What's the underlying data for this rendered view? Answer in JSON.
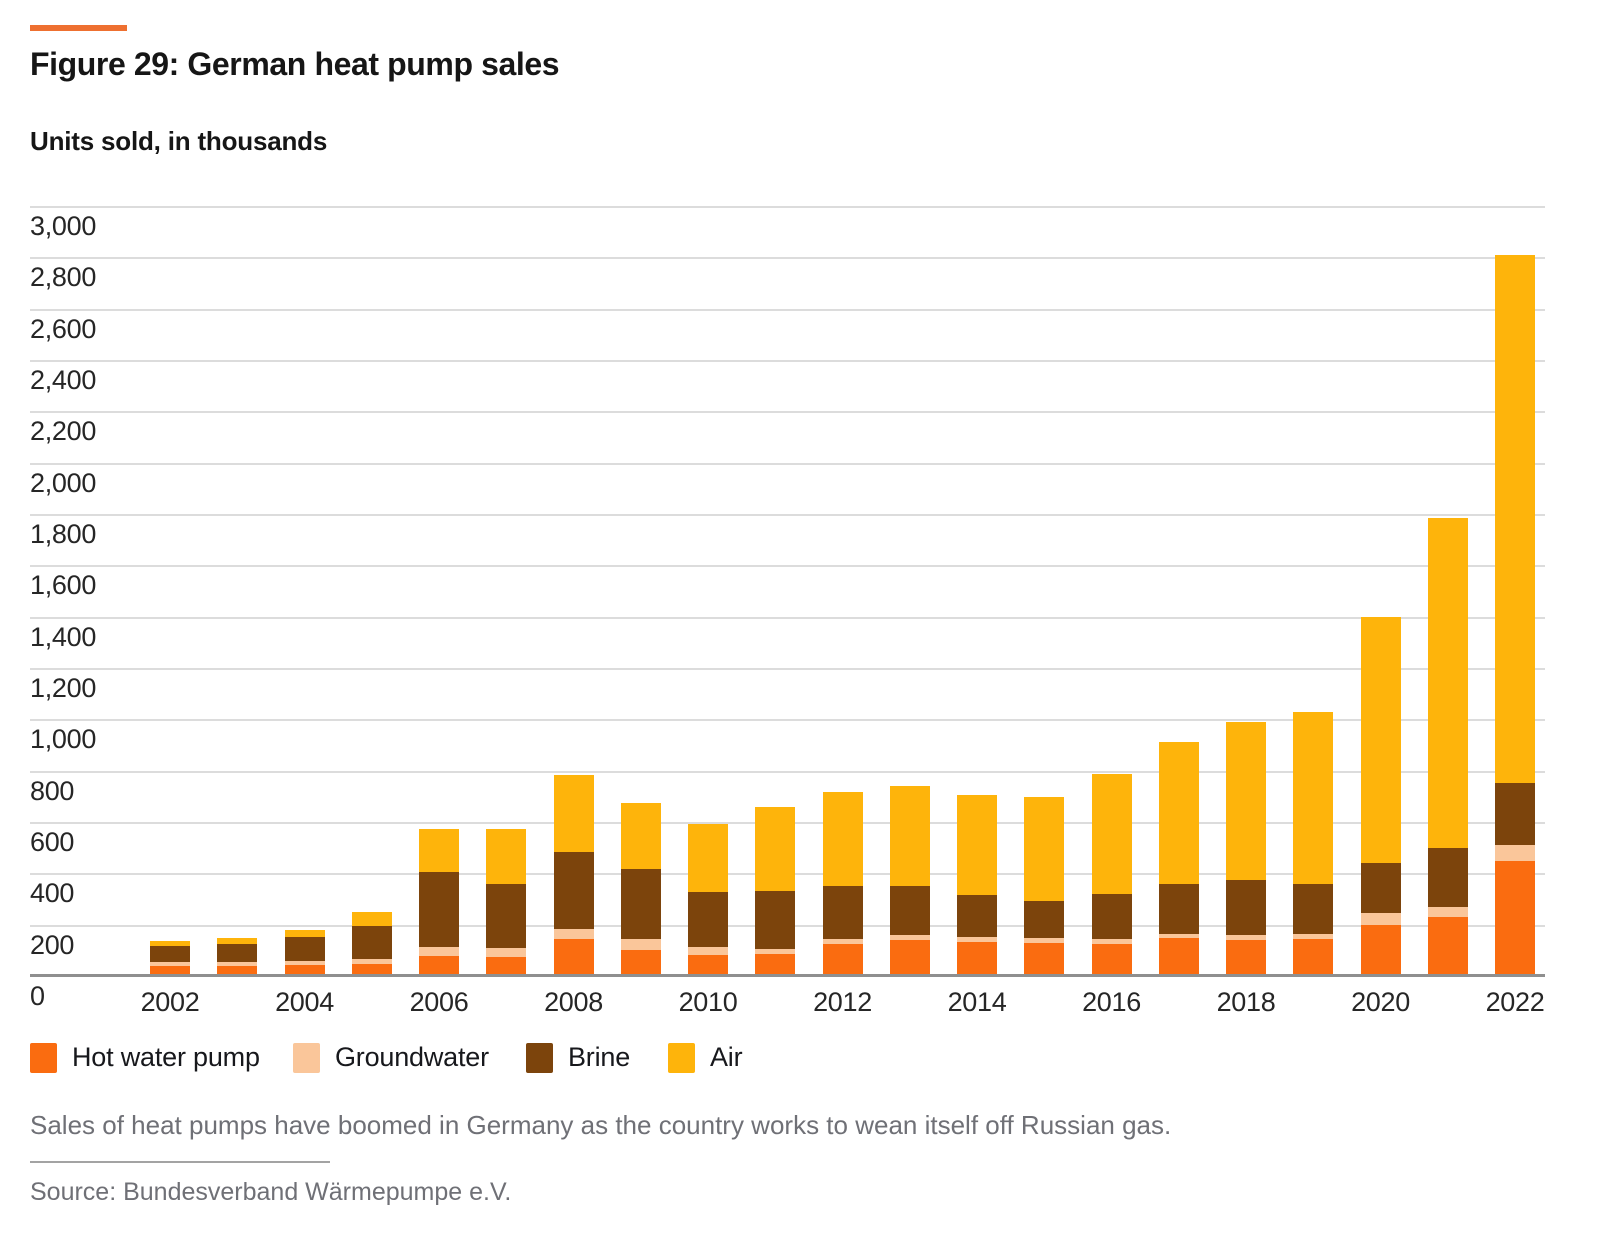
{
  "header": {
    "figure_title": "Figure 29: German heat pump sales",
    "subtitle": "Units sold, in thousands"
  },
  "colors": {
    "accent": "#ee7030",
    "hot_water_pump": "#fa6c10",
    "groundwater": "#fac69a",
    "brine": "#7c440c",
    "air": "#feb40b",
    "grid_line": "#dcdcdc",
    "axis_line": "#8f8f8f",
    "axis_text": "#262626",
    "muted_text": "#6f7076"
  },
  "chart_data": {
    "type": "bar",
    "stacked": true,
    "title": "Figure 29: German heat pump sales",
    "ylabel": "Units sold, in thousands",
    "xlabel": "",
    "ylim": [
      0,
      3000
    ],
    "ytick_step": 200,
    "grid": true,
    "legend_position": "bottom",
    "y_tick_labels": [
      "0",
      "200",
      "400",
      "600",
      "800",
      "1,000",
      "1,200",
      "1,400",
      "1,600",
      "1,800",
      "2,000",
      "2,200",
      "2,400",
      "2,600",
      "2,800",
      "3,000"
    ],
    "categories": [
      2002,
      2003,
      2004,
      2005,
      2006,
      2007,
      2008,
      2009,
      2010,
      2011,
      2012,
      2013,
      2014,
      2015,
      2016,
      2017,
      2018,
      2019,
      2020,
      2021,
      2022
    ],
    "x_tick_labels": [
      "2002",
      "2004",
      "2006",
      "2008",
      "2010",
      "2012",
      "2014",
      "2016",
      "2018",
      "2020",
      "2022"
    ],
    "series": [
      {
        "name": "Hot water pump",
        "color": "#fa6c10",
        "values": [
          38,
          39,
          42,
          48,
          78,
          74,
          143,
          100,
          81,
          87,
          126,
          139,
          133,
          129,
          125,
          148,
          142,
          145,
          200,
          229,
          450
        ]
      },
      {
        "name": "Groundwater",
        "color": "#fac69a",
        "values": [
          16,
          16,
          16,
          19,
          35,
          35,
          41,
          43,
          33,
          17,
          17,
          20,
          20,
          20,
          20,
          17,
          17,
          20,
          44,
          41,
          62
        ]
      },
      {
        "name": "Brine",
        "color": "#7c440c",
        "values": [
          64,
          71,
          94,
          126,
          293,
          249,
          300,
          272,
          215,
          227,
          208,
          193,
          163,
          143,
          176,
          195,
          217,
          195,
          198,
          228,
          240
        ]
      },
      {
        "name": "Air",
        "color": "#feb40b",
        "values": [
          19,
          23,
          27,
          57,
          167,
          215,
          299,
          258,
          264,
          329,
          367,
          389,
          391,
          404,
          467,
          550,
          612,
          668,
          958,
          1287,
          2058
        ]
      }
    ],
    "totals": [
      137,
      149,
      179,
      250,
      573,
      573,
      783,
      673,
      593,
      660,
      718,
      741,
      707,
      696,
      788,
      910,
      988,
      1028,
      1400,
      1785,
      2810
    ]
  },
  "footer": {
    "caption": "Sales of heat pumps have boomed in Germany as the country works to wean itself off Russian gas.",
    "source": "Source: Bundesverband Wärmepumpe e.V."
  }
}
